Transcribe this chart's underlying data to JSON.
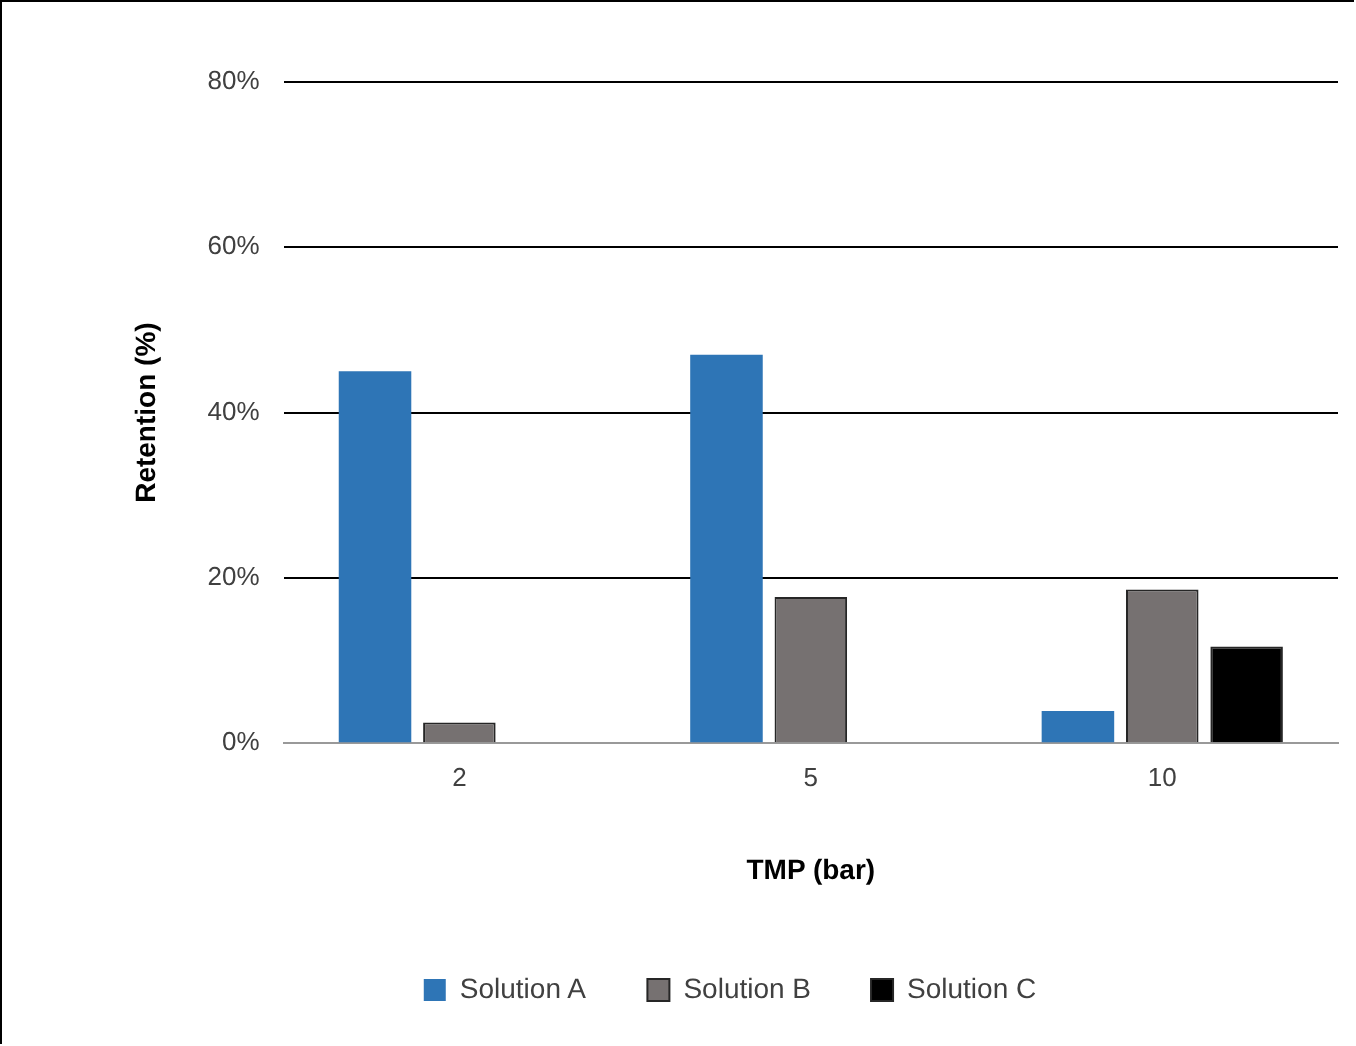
{
  "chart_data": {
    "type": "bar",
    "xlabel": "TMP (bar)",
    "ylabel": "Retention (%)",
    "categories": [
      "2",
      "5",
      "10"
    ],
    "series": [
      {
        "name": "Solution A",
        "color": "#2e75b6",
        "values": [
          45,
          47,
          3.9
        ]
      },
      {
        "name": "Solution B",
        "color": "#767171",
        "values": [
          2.5,
          17.7,
          18.6
        ]
      },
      {
        "name": "Solution C",
        "color": "#000000",
        "values": [
          null,
          null,
          11.7
        ]
      }
    ],
    "ylim": [
      0,
      80
    ],
    "yticks": [
      {
        "value": 0,
        "label": "0%"
      },
      {
        "value": 20,
        "label": "20%"
      },
      {
        "value": 40,
        "label": "40%"
      },
      {
        "value": 60,
        "label": "60%"
      },
      {
        "value": 80,
        "label": "80%"
      }
    ],
    "grid": "y",
    "legend": "bottom"
  }
}
